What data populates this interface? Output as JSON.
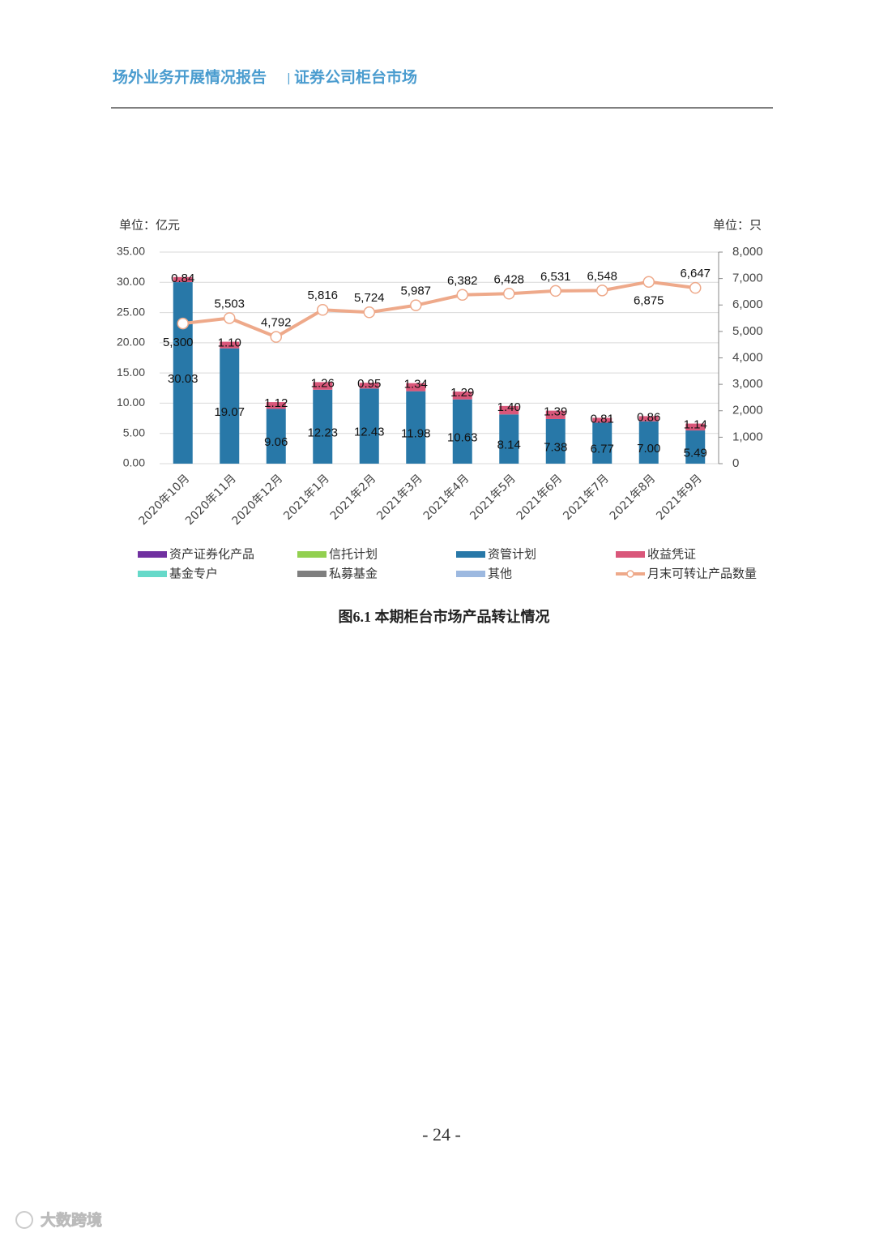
{
  "header": {
    "title": "场外业务开展情况报告",
    "separator": "|",
    "section": "证券公司柜台市场"
  },
  "chart_data": {
    "type": "bar",
    "y_unit": "单位：亿元",
    "y2_unit": "单位：只",
    "categories": [
      "2020年10月",
      "2020年11月",
      "2020年12月",
      "2021年1月",
      "2021年2月",
      "2021年3月",
      "2021年4月",
      "2021年5月",
      "2021年6月",
      "2021年7月",
      "2021年8月",
      "2021年9月"
    ],
    "series": [
      {
        "name": "资产证券化产品",
        "color": "#7030a0"
      },
      {
        "name": "信托计划",
        "color": "#92d050"
      },
      {
        "name": "资管计划",
        "color": "#2878a8",
        "values": [
          30.03,
          19.07,
          9.06,
          12.23,
          12.43,
          11.98,
          10.63,
          8.14,
          7.38,
          6.77,
          7.0,
          5.49
        ],
        "value_labels": [
          "30.03",
          "19.07",
          "9.06",
          "12.23",
          "12.43",
          "11.98",
          "10.63",
          "8.14",
          "7.38",
          "6.77",
          "7.00",
          "5.49"
        ]
      },
      {
        "name": "收益凭证",
        "color": "#d9577a",
        "values": [
          0.84,
          1.1,
          1.12,
          1.26,
          0.95,
          1.34,
          1.29,
          1.4,
          1.39,
          0.81,
          0.86,
          1.14
        ],
        "value_labels": [
          "0.84",
          "1.10",
          "1.12",
          "1.26",
          "0.95",
          "1.34",
          "1.29",
          "1.40",
          "1.39",
          "0.81",
          "0.86",
          "1.14"
        ]
      },
      {
        "name": "基金专户",
        "color": "#66d9c9"
      },
      {
        "name": "私募基金",
        "color": "#7f7f7f"
      },
      {
        "name": "其他",
        "color": "#9db9e0"
      },
      {
        "name": "月末可转让产品数量",
        "color": "#eea98a",
        "type": "line",
        "axis": "y2",
        "values": [
          5300,
          5503,
          4792,
          5816,
          5724,
          5987,
          6382,
          6428,
          6531,
          6548,
          6875,
          6647
        ],
        "value_labels": [
          "5,300",
          "5,503",
          "4,792",
          "5,816",
          "5,724",
          "5,987",
          "6,382",
          "6,428",
          "6,531",
          "6,548",
          "6,875",
          "6,647"
        ]
      }
    ],
    "ylim": [
      0,
      35
    ],
    "yticks": [
      {
        "value": 0,
        "label": "0.00"
      },
      {
        "value": 5,
        "label": "5.00"
      },
      {
        "value": 10,
        "label": "10.00"
      },
      {
        "value": 15,
        "label": "15.00"
      },
      {
        "value": 20,
        "label": "20.00"
      },
      {
        "value": 25,
        "label": "25.00"
      },
      {
        "value": 30,
        "label": "30.00"
      },
      {
        "value": 35,
        "label": "35.00"
      }
    ],
    "y2lim": [
      0,
      8000
    ],
    "y2ticks": [
      0,
      {
        "value": 1000,
        "label": "1,000"
      },
      {
        "value": 2000,
        "label": "2,000"
      },
      {
        "value": 3000,
        "label": "3,000"
      },
      {
        "value": 4000,
        "label": "4,000"
      },
      {
        "value": 5000,
        "label": "5,000"
      },
      {
        "value": 6000,
        "label": "6,000"
      },
      {
        "value": 7000,
        "label": "7,000"
      },
      {
        "value": 8000,
        "label": "8,000"
      }
    ],
    "grid": true
  },
  "caption": "图6.1 本期柜台市场产品转让情况",
  "page_number": "- 24 -",
  "watermark": "大数跨境"
}
